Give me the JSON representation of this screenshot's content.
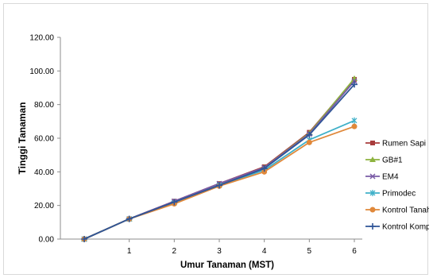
{
  "chart_data": {
    "type": "line",
    "title": "",
    "xlabel": "Umur Tanaman (MST)",
    "ylabel": "Tinggi Tanaman",
    "x": [
      0,
      1,
      2,
      3,
      4,
      5,
      6
    ],
    "x_tick_labels": [
      "",
      "1",
      "2",
      "3",
      "4",
      "5",
      "6"
    ],
    "ylim": [
      0,
      120
    ],
    "y_ticks": [
      "0.00",
      "20.00",
      "40.00",
      "60.00",
      "80.00",
      "100.00",
      "120.00"
    ],
    "legend_position": "right",
    "grid": false,
    "series": [
      {
        "name": "Rumen Sapi",
        "color": "#A83C3C",
        "marker": "square",
        "values": [
          0,
          12,
          22.5,
          33,
          43,
          63.5,
          95
        ]
      },
      {
        "name": "GB#1",
        "color": "#8DB33E",
        "marker": "triangle",
        "values": [
          0,
          12,
          22,
          32.5,
          42.5,
          63,
          95.5
        ]
      },
      {
        "name": "EM4",
        "color": "#7A5BA6",
        "marker": "x",
        "values": [
          0,
          12,
          22.5,
          33,
          42.5,
          62.5,
          94
        ]
      },
      {
        "name": "Primodec",
        "color": "#3FB0C8",
        "marker": "star",
        "values": [
          0,
          12,
          21.5,
          32,
          41,
          59,
          70.5
        ]
      },
      {
        "name": "Kontrol Tanah",
        "color": "#E0883A",
        "marker": "circle",
        "values": [
          0,
          12,
          21,
          31.5,
          40,
          57.5,
          67
        ]
      },
      {
        "name": "Kontrol Kompos",
        "color": "#2F5597",
        "marker": "plus",
        "values": [
          0,
          12,
          22,
          32,
          42,
          62,
          92
        ]
      }
    ]
  }
}
